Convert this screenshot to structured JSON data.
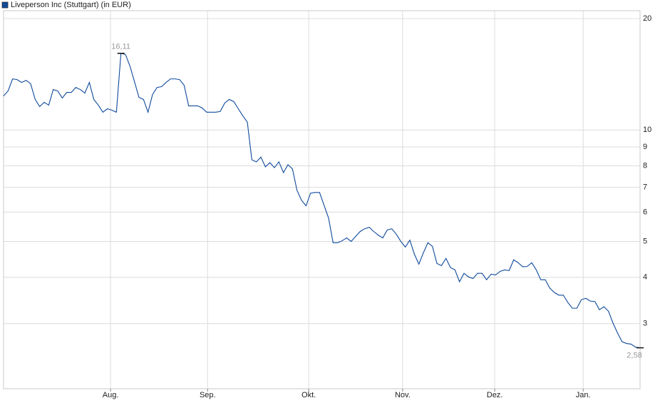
{
  "chart_data": {
    "type": "line",
    "log_scale": true,
    "grid": true,
    "series": [
      {
        "name": "Liveperson Inc (Stuttgart) (in EUR)",
        "color": "#0f4a9c",
        "values": [
          12.36,
          12.75,
          13.74,
          13.68,
          13.44,
          13.62,
          13.33,
          12.09,
          11.57,
          11.88,
          11.67,
          12.86,
          12.75,
          12.2,
          12.63,
          12.63,
          13.03,
          12.86,
          12.58,
          13.44,
          12.09,
          11.67,
          11.17,
          11.41,
          11.31,
          11.17,
          16.11,
          16.0,
          14.88,
          13.5,
          12.25,
          12.09,
          11.17,
          12.47,
          13.03,
          13.09,
          13.44,
          13.74,
          13.74,
          13.68,
          13.21,
          11.62,
          11.62,
          11.62,
          11.47,
          11.17,
          11.17,
          11.17,
          11.22,
          11.83,
          12.09,
          11.93,
          11.41,
          10.92,
          10.5,
          8.31,
          8.2,
          8.45,
          7.95,
          8.16,
          7.91,
          8.2,
          7.67,
          8.06,
          7.85,
          6.87,
          6.46,
          6.24,
          6.75,
          6.78,
          6.78,
          6.26,
          5.78,
          4.96,
          4.96,
          5.02,
          5.11,
          5.0,
          5.16,
          5.32,
          5.41,
          5.46,
          5.32,
          5.2,
          5.11,
          5.37,
          5.41,
          5.23,
          5.0,
          4.83,
          5.04,
          4.62,
          4.34,
          4.66,
          4.96,
          4.85,
          4.36,
          4.3,
          4.5,
          4.25,
          4.19,
          3.89,
          4.1,
          4.01,
          3.97,
          4.1,
          4.1,
          3.94,
          4.08,
          4.06,
          4.15,
          4.19,
          4.17,
          4.46,
          4.38,
          4.27,
          4.28,
          4.38,
          4.19,
          3.94,
          3.94,
          3.74,
          3.64,
          3.58,
          3.58,
          3.42,
          3.3,
          3.3,
          3.48,
          3.51,
          3.45,
          3.44,
          3.27,
          3.33,
          3.24,
          3.01,
          2.83,
          2.68,
          2.65,
          2.64,
          2.59,
          2.58
        ]
      }
    ],
    "annotations": [
      {
        "value": 16.11,
        "label": "16,11"
      },
      {
        "value": 2.58,
        "label": "2,58"
      }
    ],
    "xlim": [
      0,
      141
    ],
    "xticks": [
      {
        "value": 23.7,
        "label": "Aug."
      },
      {
        "value": 45.2,
        "label": "Sep."
      },
      {
        "value": 67.6,
        "label": "Okt."
      },
      {
        "value": 88.4,
        "label": "Nov."
      },
      {
        "value": 108.8,
        "label": "Dez."
      },
      {
        "value": 128.4,
        "label": "Jan."
      }
    ],
    "ylim": [
      2,
      21
    ],
    "yticks": [
      3,
      4,
      5,
      6,
      7,
      8,
      9,
      10,
      20
    ]
  }
}
